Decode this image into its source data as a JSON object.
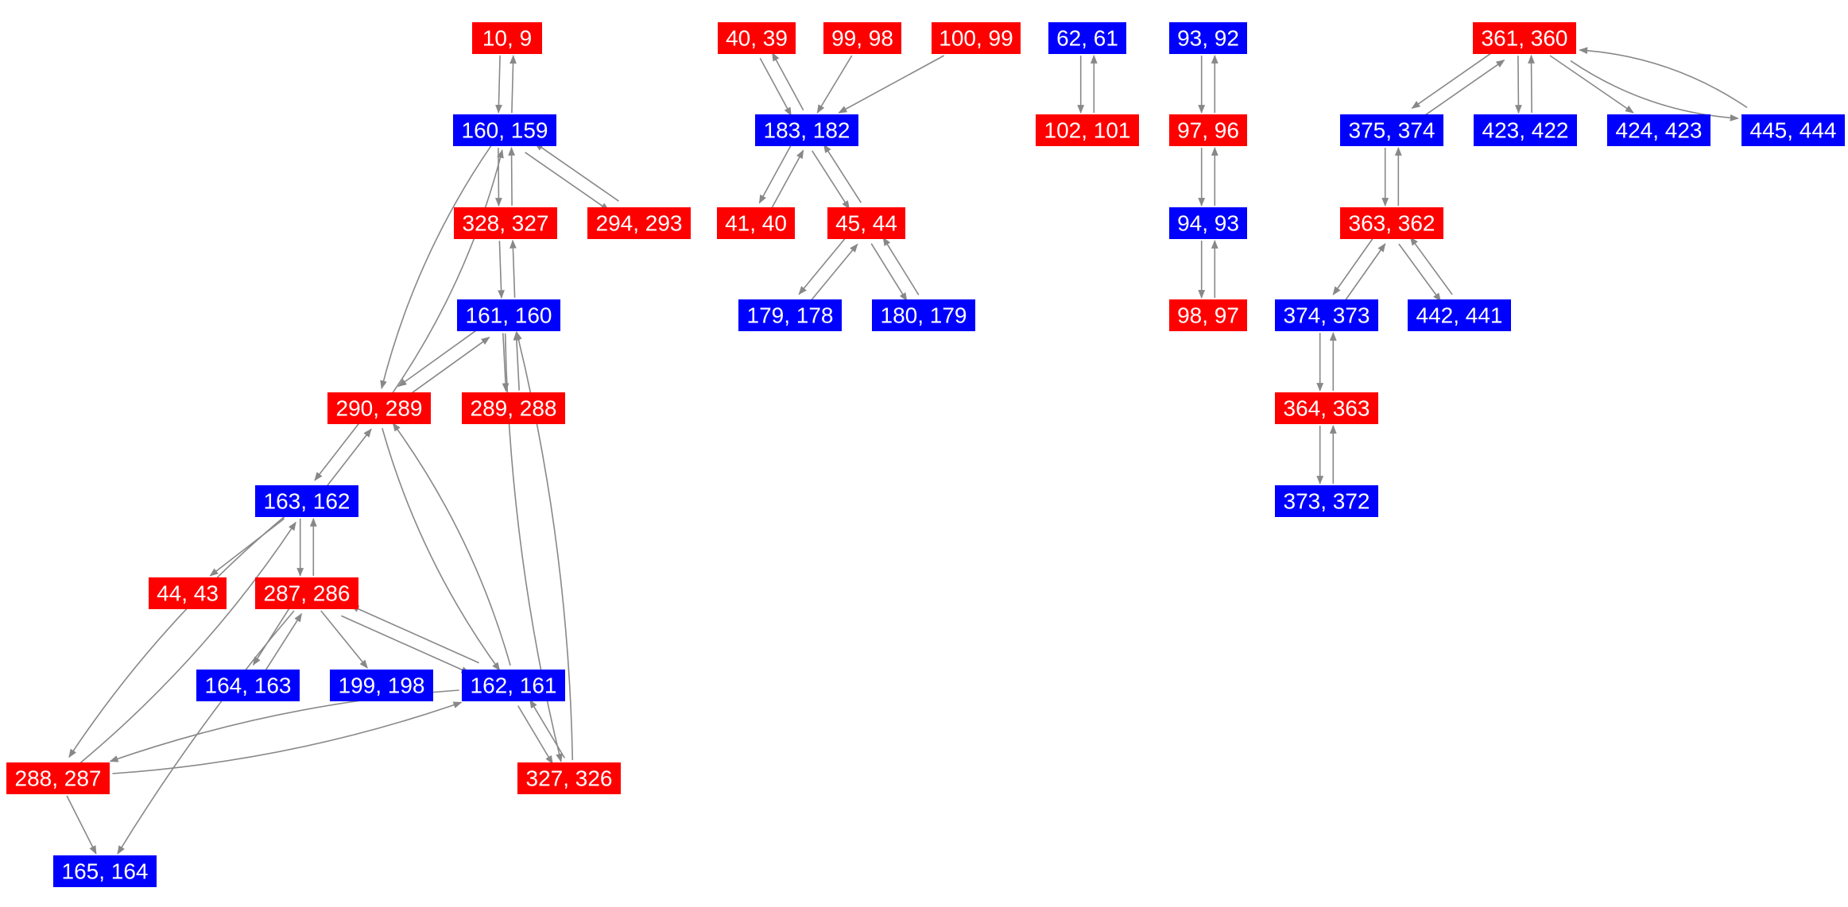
{
  "colors": {
    "red": "#ff0000",
    "blue": "#0000ff",
    "edge": "#888888",
    "text": "#ffffff"
  },
  "nodes": [
    {
      "id": "n10_9",
      "label": "10, 9",
      "color": "red"
    },
    {
      "id": "n160_159",
      "label": "160, 159",
      "color": "blue"
    },
    {
      "id": "n328_327",
      "label": "328, 327",
      "color": "red"
    },
    {
      "id": "n294_293",
      "label": "294, 293",
      "color": "red"
    },
    {
      "id": "n161_160",
      "label": "161, 160",
      "color": "blue"
    },
    {
      "id": "n290_289",
      "label": "290, 289",
      "color": "red"
    },
    {
      "id": "n289_288",
      "label": "289, 288",
      "color": "red"
    },
    {
      "id": "n163_162",
      "label": "163, 162",
      "color": "blue"
    },
    {
      "id": "n44_43",
      "label": "44, 43",
      "color": "red"
    },
    {
      "id": "n287_286",
      "label": "287, 286",
      "color": "red"
    },
    {
      "id": "n164_163",
      "label": "164, 163",
      "color": "blue"
    },
    {
      "id": "n199_198",
      "label": "199, 198",
      "color": "blue"
    },
    {
      "id": "n162_161",
      "label": "162, 161",
      "color": "blue"
    },
    {
      "id": "n288_287",
      "label": "288, 287",
      "color": "red"
    },
    {
      "id": "n327_326",
      "label": "327, 326",
      "color": "red"
    },
    {
      "id": "n165_164",
      "label": "165, 164",
      "color": "blue"
    },
    {
      "id": "n40_39",
      "label": "40, 39",
      "color": "red"
    },
    {
      "id": "n99_98",
      "label": "99, 98",
      "color": "red"
    },
    {
      "id": "n100_99",
      "label": "100, 99",
      "color": "red"
    },
    {
      "id": "n183_182",
      "label": "183, 182",
      "color": "blue"
    },
    {
      "id": "n41_40",
      "label": "41, 40",
      "color": "red"
    },
    {
      "id": "n45_44",
      "label": "45, 44",
      "color": "red"
    },
    {
      "id": "n179_178",
      "label": "179, 178",
      "color": "blue"
    },
    {
      "id": "n180_179",
      "label": "180, 179",
      "color": "blue"
    },
    {
      "id": "n62_61",
      "label": "62, 61",
      "color": "blue"
    },
    {
      "id": "n102_101",
      "label": "102, 101",
      "color": "red"
    },
    {
      "id": "n93_92",
      "label": "93, 92",
      "color": "blue"
    },
    {
      "id": "n97_96",
      "label": "97, 96",
      "color": "red"
    },
    {
      "id": "n94_93",
      "label": "94, 93",
      "color": "blue"
    },
    {
      "id": "n98_97",
      "label": "98, 97",
      "color": "red"
    },
    {
      "id": "n361_360",
      "label": "361, 360",
      "color": "red"
    },
    {
      "id": "n375_374",
      "label": "375, 374",
      "color": "blue"
    },
    {
      "id": "n423_422",
      "label": "423, 422",
      "color": "blue"
    },
    {
      "id": "n424_423",
      "label": "424, 423",
      "color": "blue"
    },
    {
      "id": "n445_444",
      "label": "445, 444",
      "color": "blue"
    },
    {
      "id": "n363_362",
      "label": "363, 362",
      "color": "red"
    },
    {
      "id": "n374_373",
      "label": "374, 373",
      "color": "blue"
    },
    {
      "id": "n442_441",
      "label": "442, 441",
      "color": "blue"
    },
    {
      "id": "n364_363",
      "label": "364, 363",
      "color": "red"
    },
    {
      "id": "n373_372",
      "label": "373, 372",
      "color": "blue"
    }
  ],
  "edges": [
    [
      "n10_9",
      "n160_159"
    ],
    [
      "n160_159",
      "n10_9"
    ],
    [
      "n160_159",
      "n328_327"
    ],
    [
      "n328_327",
      "n160_159"
    ],
    [
      "n160_159",
      "n294_293"
    ],
    [
      "n294_293",
      "n160_159"
    ],
    [
      "n160_159",
      "n290_289"
    ],
    [
      "n290_289",
      "n160_159"
    ],
    [
      "n328_327",
      "n161_160"
    ],
    [
      "n161_160",
      "n328_327"
    ],
    [
      "n161_160",
      "n290_289"
    ],
    [
      "n290_289",
      "n161_160"
    ],
    [
      "n161_160",
      "n289_288"
    ],
    [
      "n289_288",
      "n161_160"
    ],
    [
      "n161_160",
      "n327_326"
    ],
    [
      "n327_326",
      "n161_160"
    ],
    [
      "n290_289",
      "n163_162"
    ],
    [
      "n163_162",
      "n290_289"
    ],
    [
      "n290_289",
      "n162_161"
    ],
    [
      "n162_161",
      "n290_289"
    ],
    [
      "n163_162",
      "n44_43"
    ],
    [
      "n163_162",
      "n287_286"
    ],
    [
      "n287_286",
      "n163_162"
    ],
    [
      "n163_162",
      "n288_287"
    ],
    [
      "n288_287",
      "n163_162"
    ],
    [
      "n287_286",
      "n164_163"
    ],
    [
      "n164_163",
      "n287_286"
    ],
    [
      "n287_286",
      "n199_198"
    ],
    [
      "n287_286",
      "n162_161"
    ],
    [
      "n162_161",
      "n287_286"
    ],
    [
      "n287_286",
      "n165_164"
    ],
    [
      "n162_161",
      "n288_287"
    ],
    [
      "n288_287",
      "n162_161"
    ],
    [
      "n162_161",
      "n327_326"
    ],
    [
      "n327_326",
      "n162_161"
    ],
    [
      "n288_287",
      "n165_164"
    ],
    [
      "n40_39",
      "n183_182"
    ],
    [
      "n183_182",
      "n40_39"
    ],
    [
      "n99_98",
      "n183_182"
    ],
    [
      "n100_99",
      "n183_182"
    ],
    [
      "n183_182",
      "n41_40"
    ],
    [
      "n41_40",
      "n183_182"
    ],
    [
      "n183_182",
      "n45_44"
    ],
    [
      "n45_44",
      "n183_182"
    ],
    [
      "n45_44",
      "n179_178"
    ],
    [
      "n179_178",
      "n45_44"
    ],
    [
      "n45_44",
      "n180_179"
    ],
    [
      "n180_179",
      "n45_44"
    ],
    [
      "n62_61",
      "n102_101"
    ],
    [
      "n102_101",
      "n62_61"
    ],
    [
      "n93_92",
      "n97_96"
    ],
    [
      "n97_96",
      "n93_92"
    ],
    [
      "n97_96",
      "n94_93"
    ],
    [
      "n94_93",
      "n97_96"
    ],
    [
      "n94_93",
      "n98_97"
    ],
    [
      "n98_97",
      "n94_93"
    ],
    [
      "n361_360",
      "n375_374"
    ],
    [
      "n375_374",
      "n361_360"
    ],
    [
      "n361_360",
      "n423_422"
    ],
    [
      "n423_422",
      "n361_360"
    ],
    [
      "n361_360",
      "n424_423"
    ],
    [
      "n361_360",
      "n445_444"
    ],
    [
      "n445_444",
      "n361_360"
    ],
    [
      "n375_374",
      "n363_362"
    ],
    [
      "n363_362",
      "n375_374"
    ],
    [
      "n363_362",
      "n374_373"
    ],
    [
      "n374_373",
      "n363_362"
    ],
    [
      "n363_362",
      "n442_441"
    ],
    [
      "n442_441",
      "n363_362"
    ],
    [
      "n374_373",
      "n364_363"
    ],
    [
      "n364_363",
      "n374_373"
    ],
    [
      "n364_363",
      "n373_372"
    ],
    [
      "n373_372",
      "n364_363"
    ]
  ]
}
